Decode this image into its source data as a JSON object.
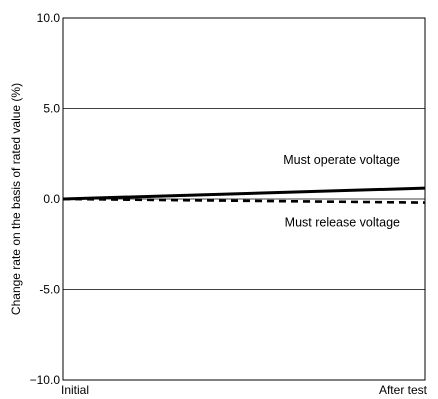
{
  "chart_data": {
    "type": "line",
    "title": "",
    "xlabel": "",
    "ylabel": "Change rate on the basis of rated value (%)",
    "categories": [
      "Initial",
      "After test"
    ],
    "ylim": [
      -10.0,
      10.0
    ],
    "yticks": [
      "10.0",
      "5.0",
      "0.0",
      "-5.0",
      "−10.0"
    ],
    "grid": "horizontal at 5.0, 0.0, -5.0",
    "series": [
      {
        "name": "Must operate voltage",
        "values": [
          0.0,
          0.6
        ],
        "style": "solid"
      },
      {
        "name": "Must release voltage",
        "values": [
          0.0,
          -0.2
        ],
        "style": "dashed"
      }
    ],
    "legend": "inline labels next to lines"
  },
  "colors": {
    "line": "#000000",
    "grid": "#000000",
    "background": "#ffffff"
  }
}
